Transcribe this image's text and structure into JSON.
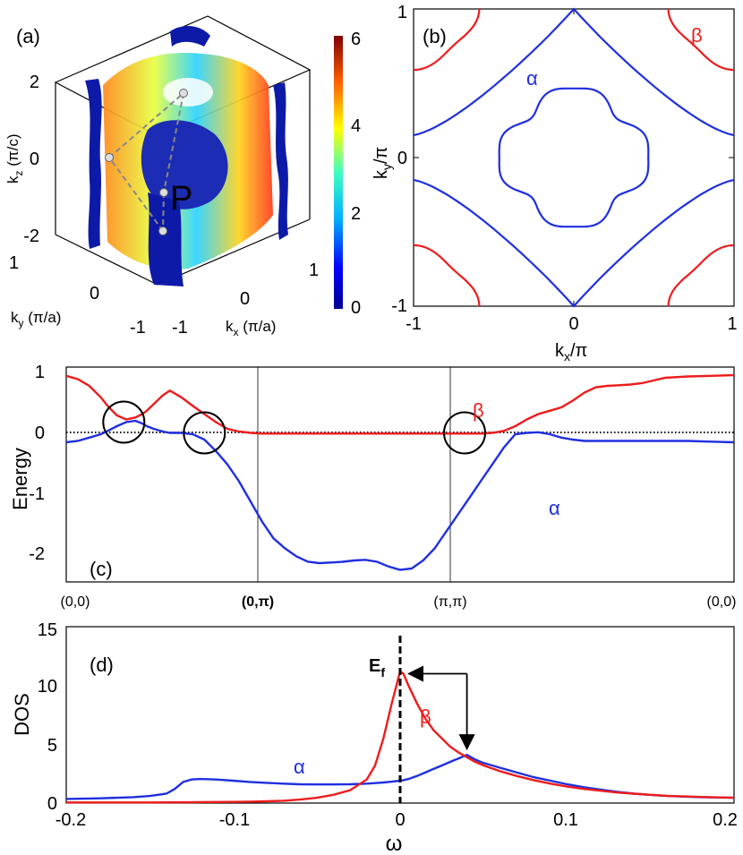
{
  "colors": {
    "alpha": "#1f2fe0",
    "beta": "#ee1c1c",
    "axis": "#000000"
  },
  "panels": {
    "a": {
      "label": "(a)",
      "point_label": "P",
      "kz_label": "k",
      "kz_sub": "z",
      "kz_unit": " (π/c)",
      "ky_label": "k",
      "ky_sub": "y",
      "ky_unit": " (π/a)",
      "kx_label": "k",
      "kx_sub": "x",
      "kx_unit": " (π/a)",
      "kz_ticks": [
        "2",
        "0",
        "-2"
      ],
      "ky_ticks": [
        "1",
        "0",
        "-1"
      ],
      "kx_ticks": [
        "-1",
        "0",
        "1"
      ],
      "colorbar_ticks": [
        "6",
        "4",
        "2",
        "0"
      ],
      "colorbar_range": [
        0,
        6
      ]
    },
    "b": {
      "label": "(b)",
      "alpha_label": "α",
      "beta_label": "β",
      "xlabel": "k",
      "xsub": "x",
      "xunit": "/π",
      "ylabel": "k",
      "ysub": "y",
      "yunit": "/π",
      "x_ticks": [
        "-1",
        "0",
        "1"
      ],
      "y_ticks": [
        "1",
        "0",
        "-1"
      ]
    },
    "c": {
      "label": "(c)",
      "ylabel": "Energy",
      "alpha_label": "α",
      "beta_label": "β",
      "y_ticks": [
        "1",
        "0",
        "-1",
        "-2"
      ],
      "x_ticks": [
        "(0,0)",
        "(0,π)",
        "(π,π)",
        "(0,0)"
      ]
    },
    "d": {
      "label": "(d)",
      "ylabel": "DOS",
      "xlabel": "ω",
      "ef_label": "E",
      "ef_sub": "f",
      "alpha_label": "α",
      "beta_label": "β",
      "y_ticks": [
        "15",
        "10",
        "5",
        "0"
      ],
      "x_ticks": [
        "-0.2",
        "-0.1",
        "0",
        "0.1",
        "0.2"
      ]
    }
  },
  "chart_data": [
    {
      "type": "line",
      "panel": "b",
      "xlim": [
        -1,
        1
      ],
      "ylim": [
        -1,
        1
      ],
      "series": [
        {
          "name": "α",
          "kind": "inner-contour",
          "x": [
            0.0,
            0.12,
            0.25,
            0.35,
            0.45,
            0.45,
            0.35,
            0.25,
            0.12,
            0.0,
            -0.12,
            -0.25,
            -0.35,
            -0.45,
            -0.45,
            -0.35,
            -0.25,
            -0.12,
            0.0,
            0.12,
            0.25,
            0.35,
            0.45,
            0.45,
            0.35,
            0.25,
            0.12,
            0.0,
            -0.12,
            -0.25,
            -0.35,
            -0.45,
            -0.45,
            -0.35,
            -0.25,
            -0.12,
            0.0
          ],
          "y": [
            0.45,
            0.45,
            0.35,
            0.25,
            0.12,
            0.0,
            -0.12,
            -0.25,
            -0.35,
            -0.45,
            -0.45,
            -0.35,
            -0.25,
            -0.12,
            0.0,
            0.12,
            0.25,
            0.35,
            0.45,
            0.45,
            0.35,
            0.25,
            0.12,
            0.0,
            -0.12,
            -0.25,
            -0.35,
            -0.45,
            -0.45,
            -0.35,
            -0.25,
            -0.12,
            0.0,
            0.12,
            0.25,
            0.35,
            0.45
          ]
        },
        {
          "name": "α",
          "kind": "outer-cross-upper",
          "x": [
            -1.0,
            -0.75,
            -0.55,
            -0.45,
            -0.2,
            0.0,
            0.2,
            0.45,
            0.55,
            0.75,
            1.0
          ],
          "y": [
            0.15,
            0.28,
            0.45,
            0.62,
            0.82,
            1.0,
            0.82,
            0.62,
            0.45,
            0.28,
            0.15
          ]
        },
        {
          "name": "α",
          "kind": "outer-cross-lower",
          "x": [
            -1.0,
            -0.75,
            -0.55,
            -0.45,
            -0.2,
            0.0,
            0.2,
            0.45,
            0.55,
            0.75,
            1.0
          ],
          "y": [
            -0.15,
            -0.28,
            -0.45,
            -0.62,
            -0.82,
            -1.0,
            -0.82,
            -0.62,
            -0.45,
            -0.28,
            -0.15
          ]
        },
        {
          "name": "β",
          "kind": "corner-arcs",
          "radius": 0.38
        }
      ]
    },
    {
      "type": "line",
      "panel": "c",
      "ylim": [
        -2.2,
        1.0
      ],
      "x": [
        0,
        0.05,
        0.1,
        0.15,
        0.18,
        0.22,
        0.26,
        0.3,
        0.33,
        0.35,
        0.38,
        0.42,
        0.45,
        0.5,
        0.55,
        0.6,
        0.65,
        0.7,
        0.75,
        0.8,
        0.85,
        0.88,
        0.9,
        0.95,
        1.0,
        1.05,
        1.1,
        1.15,
        1.2,
        1.25,
        1.3,
        1.35,
        1.4,
        1.45,
        1.5,
        1.55,
        1.6,
        1.62,
        1.65,
        1.7,
        1.75,
        1.8,
        1.85,
        1.9,
        1.95,
        2.0,
        2.05,
        2.1,
        2.15,
        2.2,
        2.25,
        2.3,
        2.35,
        2.4,
        2.45,
        2.5,
        2.55,
        2.6,
        2.7,
        2.8,
        2.9,
        2.9
      ],
      "series": [
        {
          "name": "α",
          "values": [
            -0.12,
            -0.1,
            -0.05,
            0.0,
            0.05,
            0.12,
            0.18,
            0.2,
            0.16,
            0.12,
            0.08,
            0.04,
            0.02,
            0.02,
            0.0,
            -0.08,
            -0.25,
            -0.45,
            -0.7,
            -1.0,
            -1.3,
            -1.45,
            -1.55,
            -1.7,
            -1.82,
            -1.9,
            -1.92,
            -1.91,
            -1.9,
            -1.88,
            -1.87,
            -1.9,
            -1.97,
            -2.02,
            -2.0,
            -1.88,
            -1.7,
            -1.6,
            -1.45,
            -1.2,
            -0.95,
            -0.7,
            -0.45,
            -0.2,
            0.0,
            0.02,
            0.03,
            0.0,
            -0.05,
            -0.08,
            -0.1,
            -0.1,
            -0.1,
            -0.1,
            -0.1,
            -0.1,
            -0.1,
            -0.1,
            -0.1,
            -0.11,
            -0.12,
            -0.12
          ]
        },
        {
          "name": "β",
          "values": [
            0.87,
            0.82,
            0.72,
            0.55,
            0.42,
            0.28,
            0.22,
            0.25,
            0.3,
            0.35,
            0.45,
            0.58,
            0.65,
            0.55,
            0.42,
            0.3,
            0.18,
            0.08,
            0.04,
            0.02,
            0.01,
            0.01,
            0.01,
            0.01,
            0.01,
            0.01,
            0.01,
            0.01,
            0.01,
            0.01,
            0.01,
            0.01,
            0.01,
            0.01,
            0.01,
            0.01,
            0.01,
            0.01,
            0.01,
            0.01,
            0.01,
            0.01,
            0.02,
            0.05,
            0.12,
            0.22,
            0.3,
            0.35,
            0.4,
            0.5,
            0.62,
            0.7,
            0.72,
            0.73,
            0.74,
            0.76,
            0.8,
            0.84,
            0.86,
            0.87,
            0.88,
            0.88
          ]
        }
      ],
      "circles_at": [
        [
          0.25,
          0.18
        ],
        [
          0.6,
          0.02
        ],
        [
          1.73,
          0.02
        ]
      ]
    },
    {
      "type": "line",
      "panel": "d",
      "xlim": [
        -0.2,
        0.2
      ],
      "ylim": [
        0,
        15
      ],
      "xlabel": "ω",
      "ylabel": "DOS",
      "x": [
        -0.2,
        -0.18,
        -0.16,
        -0.15,
        -0.14,
        -0.135,
        -0.13,
        -0.125,
        -0.12,
        -0.11,
        -0.1,
        -0.09,
        -0.08,
        -0.07,
        -0.06,
        -0.05,
        -0.04,
        -0.03,
        -0.02,
        -0.015,
        -0.01,
        -0.005,
        0.0,
        0.002,
        0.005,
        0.01,
        0.015,
        0.02,
        0.025,
        0.03,
        0.035,
        0.04,
        0.045,
        0.05,
        0.06,
        0.07,
        0.08,
        0.09,
        0.1,
        0.11,
        0.12,
        0.13,
        0.14,
        0.15,
        0.16,
        0.18,
        0.2
      ],
      "series": [
        {
          "name": "α",
          "values": [
            0.35,
            0.4,
            0.5,
            0.6,
            0.8,
            1.2,
            1.8,
            2.0,
            2.05,
            2.0,
            1.9,
            1.8,
            1.72,
            1.65,
            1.6,
            1.58,
            1.58,
            1.6,
            1.65,
            1.7,
            1.75,
            1.82,
            1.9,
            1.95,
            2.05,
            2.3,
            2.6,
            2.9,
            3.2,
            3.5,
            3.8,
            4.1,
            3.7,
            3.4,
            3.0,
            2.6,
            2.2,
            1.9,
            1.6,
            1.35,
            1.15,
            0.95,
            0.8,
            0.7,
            0.6,
            0.5,
            0.45
          ]
        },
        {
          "name": "β",
          "values": [
            0.05,
            0.05,
            0.05,
            0.05,
            0.06,
            0.06,
            0.07,
            0.07,
            0.08,
            0.09,
            0.1,
            0.12,
            0.15,
            0.2,
            0.3,
            0.45,
            0.7,
            1.1,
            2.0,
            3.2,
            5.5,
            8.5,
            11.2,
            11.0,
            10.0,
            8.5,
            7.2,
            6.2,
            5.5,
            4.8,
            4.3,
            3.9,
            3.5,
            3.2,
            2.7,
            2.3,
            1.95,
            1.65,
            1.4,
            1.2,
            1.05,
            0.9,
            0.8,
            0.7,
            0.62,
            0.52,
            0.45
          ]
        }
      ],
      "ef_at": 0.0,
      "arrow": {
        "from": [
          0.04,
          11.0
        ],
        "corner": [
          0.04,
          11.0
        ],
        "to_peak_x": 0.003,
        "down_to": 4.3
      }
    }
  ]
}
